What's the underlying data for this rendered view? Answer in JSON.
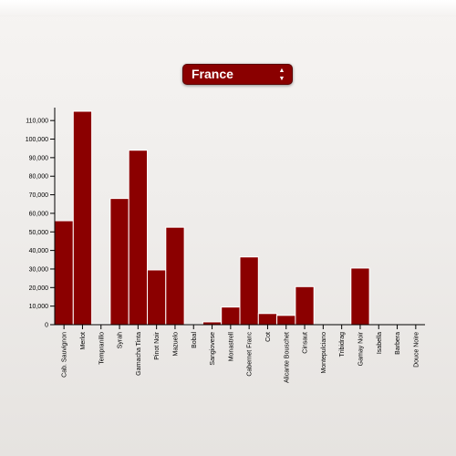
{
  "selector": {
    "selected": "France",
    "arrow_icon": "up-down-arrows-icon"
  },
  "colors": {
    "bar": "#8b0000",
    "bar_stroke": "#ffffff",
    "axis": "#000000"
  },
  "chart_data": {
    "type": "bar",
    "categories": [
      "Cab. Sauvignon",
      "Merlot",
      "Tempranillo",
      "Syrah",
      "Garnacha Tinta",
      "Pinot Noir",
      "Mazuelo",
      "Bobal",
      "Sangiovese",
      "Monastrell",
      "Cabernet Franc",
      "Cot",
      "Alicante Bouschet",
      "Cinsaut",
      "Montepulciano",
      "Tribidrag",
      "Gamay Noir",
      "Isabella",
      "Barbera",
      "Douce Noire"
    ],
    "values": [
      56000,
      115000,
      500,
      68000,
      94000,
      29500,
      52500,
      200,
      1500,
      9500,
      36500,
      6000,
      5000,
      20500,
      0,
      0,
      30500,
      0,
      0,
      0
    ],
    "yticks": [
      0,
      10000,
      20000,
      30000,
      40000,
      50000,
      60000,
      70000,
      80000,
      90000,
      100000,
      110000
    ],
    "ytick_labels": [
      "0",
      "10,000",
      "20,000",
      "30,000",
      "40,000",
      "50,000",
      "60,000",
      "70,000",
      "80,000",
      "90,000",
      "100,000",
      "110,000"
    ],
    "ylim": [
      0,
      115000
    ],
    "title": "",
    "xlabel": "",
    "ylabel": "",
    "grid": false,
    "legend": "none"
  }
}
